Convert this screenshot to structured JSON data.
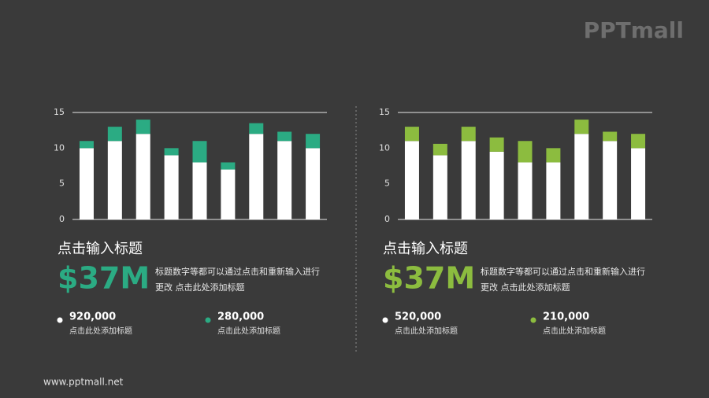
{
  "logo": "PPTmall",
  "footer": "www.pptmall.net",
  "chart_data": [
    {
      "type": "stacked_bar",
      "categories": [
        null,
        null,
        null,
        null,
        null,
        null,
        null,
        null,
        null
      ],
      "series": [
        {
          "color": "#ffffff",
          "values": [
            10,
            11,
            12,
            9,
            8,
            7,
            12,
            11,
            10
          ]
        },
        {
          "color": "#2bab83",
          "values": [
            1,
            2,
            2,
            1,
            3,
            1,
            1.5,
            1.3,
            2
          ]
        }
      ],
      "ylim": [
        0,
        15
      ],
      "yticks": [
        0,
        5,
        10,
        15
      ],
      "grid": false
    },
    {
      "type": "stacked_bar",
      "categories": [
        null,
        null,
        null,
        null,
        null,
        null,
        null,
        null,
        null
      ],
      "series": [
        {
          "color": "#ffffff",
          "values": [
            11,
            9,
            11,
            9.5,
            8,
            8,
            12,
            11,
            10
          ]
        },
        {
          "color": "#8cbc3f",
          "values": [
            2,
            1.6,
            2,
            2,
            3,
            2,
            2,
            1.3,
            2
          ]
        }
      ],
      "ylim": [
        0,
        15
      ],
      "yticks": [
        0,
        5,
        10,
        15
      ],
      "grid": false
    }
  ],
  "panels": [
    {
      "heading": "点击输入标题",
      "big_number": "$37M",
      "accent": "#2bab83",
      "description": [
        "标题数字等都可以通过点击和重新输入进行",
        "更改 点击此处添加标题"
      ],
      "stats": [
        {
          "figure": "920,000",
          "caption": "点击此处添加标题"
        },
        {
          "figure": "280,000",
          "caption": "点击此处添加标题"
        }
      ]
    },
    {
      "heading": "点击输入标题",
      "big_number": "$37M",
      "accent": "#8cbc3f",
      "description": [
        "标题数字等都可以通过点击和重新输入进行",
        "更改 点击此处添加标题"
      ],
      "stats": [
        {
          "figure": "520,000",
          "caption": "点击此处添加标题"
        },
        {
          "figure": "210,000",
          "caption": "点击此处添加标题"
        }
      ]
    }
  ]
}
